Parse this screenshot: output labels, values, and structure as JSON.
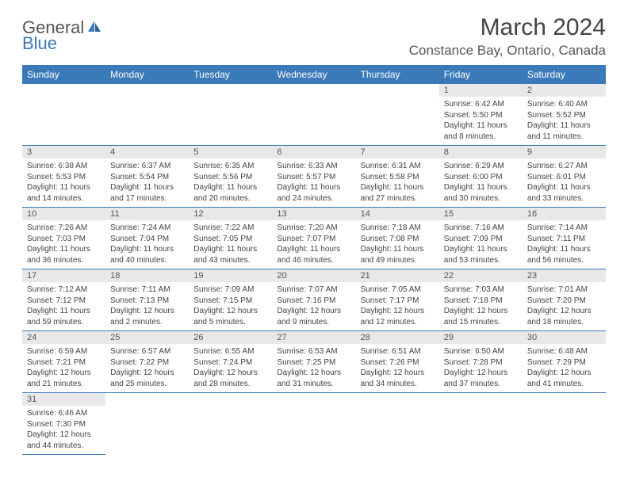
{
  "logo": {
    "text1": "General",
    "text2": "Blue"
  },
  "title": "March 2024",
  "location": "Constance Bay, Ontario, Canada",
  "colors": {
    "header_bg": "#3b7ab8",
    "header_text": "#ffffff",
    "daynum_bg": "#e8e8e8",
    "cell_border": "#3b7ab8",
    "body_text": "#444444"
  },
  "day_headers": [
    "Sunday",
    "Monday",
    "Tuesday",
    "Wednesday",
    "Thursday",
    "Friday",
    "Saturday"
  ],
  "weeks": [
    [
      null,
      null,
      null,
      null,
      null,
      {
        "d": "1",
        "sr": "Sunrise: 6:42 AM",
        "ss": "Sunset: 5:50 PM",
        "dl": "Daylight: 11 hours and 8 minutes."
      },
      {
        "d": "2",
        "sr": "Sunrise: 6:40 AM",
        "ss": "Sunset: 5:52 PM",
        "dl": "Daylight: 11 hours and 11 minutes."
      }
    ],
    [
      {
        "d": "3",
        "sr": "Sunrise: 6:38 AM",
        "ss": "Sunset: 5:53 PM",
        "dl": "Daylight: 11 hours and 14 minutes."
      },
      {
        "d": "4",
        "sr": "Sunrise: 6:37 AM",
        "ss": "Sunset: 5:54 PM",
        "dl": "Daylight: 11 hours and 17 minutes."
      },
      {
        "d": "5",
        "sr": "Sunrise: 6:35 AM",
        "ss": "Sunset: 5:56 PM",
        "dl": "Daylight: 11 hours and 20 minutes."
      },
      {
        "d": "6",
        "sr": "Sunrise: 6:33 AM",
        "ss": "Sunset: 5:57 PM",
        "dl": "Daylight: 11 hours and 24 minutes."
      },
      {
        "d": "7",
        "sr": "Sunrise: 6:31 AM",
        "ss": "Sunset: 5:58 PM",
        "dl": "Daylight: 11 hours and 27 minutes."
      },
      {
        "d": "8",
        "sr": "Sunrise: 6:29 AM",
        "ss": "Sunset: 6:00 PM",
        "dl": "Daylight: 11 hours and 30 minutes."
      },
      {
        "d": "9",
        "sr": "Sunrise: 6:27 AM",
        "ss": "Sunset: 6:01 PM",
        "dl": "Daylight: 11 hours and 33 minutes."
      }
    ],
    [
      {
        "d": "10",
        "sr": "Sunrise: 7:26 AM",
        "ss": "Sunset: 7:03 PM",
        "dl": "Daylight: 11 hours and 36 minutes."
      },
      {
        "d": "11",
        "sr": "Sunrise: 7:24 AM",
        "ss": "Sunset: 7:04 PM",
        "dl": "Daylight: 11 hours and 40 minutes."
      },
      {
        "d": "12",
        "sr": "Sunrise: 7:22 AM",
        "ss": "Sunset: 7:05 PM",
        "dl": "Daylight: 11 hours and 43 minutes."
      },
      {
        "d": "13",
        "sr": "Sunrise: 7:20 AM",
        "ss": "Sunset: 7:07 PM",
        "dl": "Daylight: 11 hours and 46 minutes."
      },
      {
        "d": "14",
        "sr": "Sunrise: 7:18 AM",
        "ss": "Sunset: 7:08 PM",
        "dl": "Daylight: 11 hours and 49 minutes."
      },
      {
        "d": "15",
        "sr": "Sunrise: 7:16 AM",
        "ss": "Sunset: 7:09 PM",
        "dl": "Daylight: 11 hours and 53 minutes."
      },
      {
        "d": "16",
        "sr": "Sunrise: 7:14 AM",
        "ss": "Sunset: 7:11 PM",
        "dl": "Daylight: 11 hours and 56 minutes."
      }
    ],
    [
      {
        "d": "17",
        "sr": "Sunrise: 7:12 AM",
        "ss": "Sunset: 7:12 PM",
        "dl": "Daylight: 11 hours and 59 minutes."
      },
      {
        "d": "18",
        "sr": "Sunrise: 7:11 AM",
        "ss": "Sunset: 7:13 PM",
        "dl": "Daylight: 12 hours and 2 minutes."
      },
      {
        "d": "19",
        "sr": "Sunrise: 7:09 AM",
        "ss": "Sunset: 7:15 PM",
        "dl": "Daylight: 12 hours and 5 minutes."
      },
      {
        "d": "20",
        "sr": "Sunrise: 7:07 AM",
        "ss": "Sunset: 7:16 PM",
        "dl": "Daylight: 12 hours and 9 minutes."
      },
      {
        "d": "21",
        "sr": "Sunrise: 7:05 AM",
        "ss": "Sunset: 7:17 PM",
        "dl": "Daylight: 12 hours and 12 minutes."
      },
      {
        "d": "22",
        "sr": "Sunrise: 7:03 AM",
        "ss": "Sunset: 7:18 PM",
        "dl": "Daylight: 12 hours and 15 minutes."
      },
      {
        "d": "23",
        "sr": "Sunrise: 7:01 AM",
        "ss": "Sunset: 7:20 PM",
        "dl": "Daylight: 12 hours and 18 minutes."
      }
    ],
    [
      {
        "d": "24",
        "sr": "Sunrise: 6:59 AM",
        "ss": "Sunset: 7:21 PM",
        "dl": "Daylight: 12 hours and 21 minutes."
      },
      {
        "d": "25",
        "sr": "Sunrise: 6:57 AM",
        "ss": "Sunset: 7:22 PM",
        "dl": "Daylight: 12 hours and 25 minutes."
      },
      {
        "d": "26",
        "sr": "Sunrise: 6:55 AM",
        "ss": "Sunset: 7:24 PM",
        "dl": "Daylight: 12 hours and 28 minutes."
      },
      {
        "d": "27",
        "sr": "Sunrise: 6:53 AM",
        "ss": "Sunset: 7:25 PM",
        "dl": "Daylight: 12 hours and 31 minutes."
      },
      {
        "d": "28",
        "sr": "Sunrise: 6:51 AM",
        "ss": "Sunset: 7:26 PM",
        "dl": "Daylight: 12 hours and 34 minutes."
      },
      {
        "d": "29",
        "sr": "Sunrise: 6:50 AM",
        "ss": "Sunset: 7:28 PM",
        "dl": "Daylight: 12 hours and 37 minutes."
      },
      {
        "d": "30",
        "sr": "Sunrise: 6:48 AM",
        "ss": "Sunset: 7:29 PM",
        "dl": "Daylight: 12 hours and 41 minutes."
      }
    ],
    [
      {
        "d": "31",
        "sr": "Sunrise: 6:46 AM",
        "ss": "Sunset: 7:30 PM",
        "dl": "Daylight: 12 hours and 44 minutes."
      },
      null,
      null,
      null,
      null,
      null,
      null
    ]
  ]
}
